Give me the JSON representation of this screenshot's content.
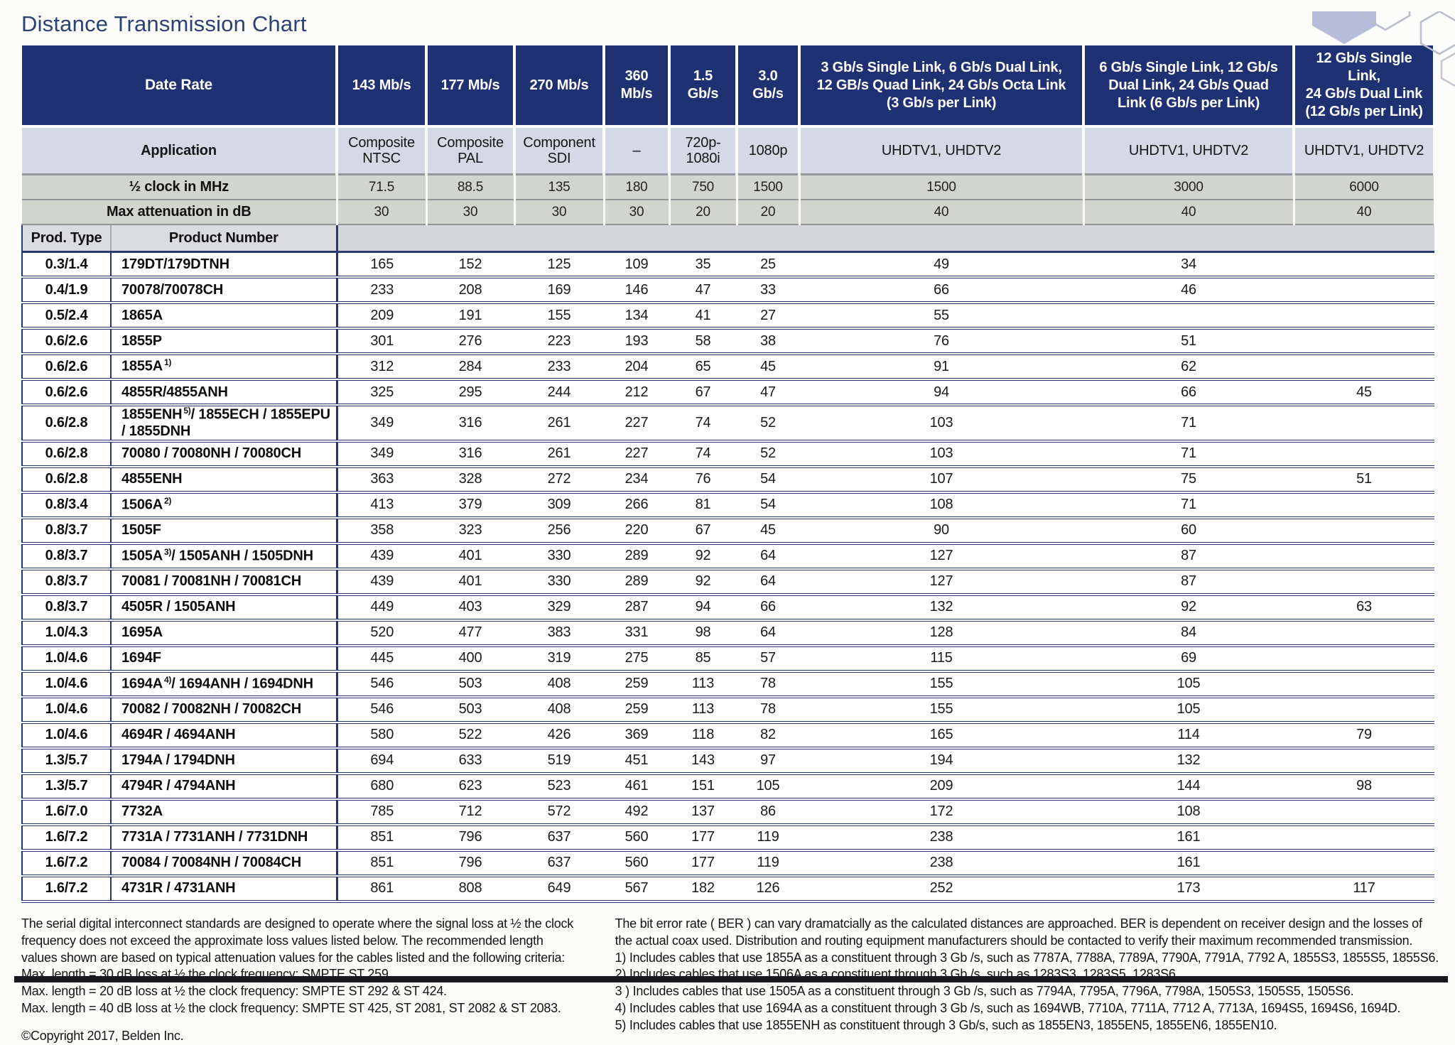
{
  "title": "Distance Transmission Chart",
  "table": {
    "header": {
      "date_rate_label": "Date Rate",
      "rate_cols": [
        "143 Mb/s",
        "177 Mb/s",
        "270 Mb/s",
        "360\nMb/s",
        "1.5\nGb/s",
        "3.0\nGb/s",
        "3 Gb/s Single Link, 6 Gb/s Dual Link,\n12 GB/s Quad Link, 24 Gb/s Octa Link\n(3 Gb/s per Link)",
        "6 Gb/s Single Link, 12 Gb/s\nDual Link, 24 Gb/s Quad\nLink (6 Gb/s per Link)",
        "12 Gb/s Single Link,\n24 Gb/s Dual Link\n(12 Gb/s per Link)"
      ],
      "application_label": "Application",
      "app_cols": [
        "Composite\nNTSC",
        "Composite\nPAL",
        "Component\nSDI",
        "–",
        "720p-\n1080i",
        "1080p",
        "UHDTV1, UHDTV2",
        "UHDTV1, UHDTV2",
        "UHDTV1, UHDTV2"
      ],
      "clock_label": "½ clock in MHz",
      "clock_cols": [
        "71.5",
        "88.5",
        "135",
        "180",
        "750",
        "1500",
        "1500",
        "3000",
        "6000"
      ],
      "atten_label": "Max attenuation in dB",
      "atten_cols": [
        "30",
        "30",
        "30",
        "30",
        "20",
        "20",
        "40",
        "40",
        "40"
      ],
      "prod_type_label": "Prod. Type",
      "product_number_label": "Product Number"
    },
    "rows": [
      {
        "type": "0.3/1.4",
        "name": "179DT/179DTNH",
        "note": "",
        "rest": "",
        "values": [
          "165",
          "152",
          "125",
          "109",
          "35",
          "25",
          "49",
          "34",
          ""
        ]
      },
      {
        "type": "0.4/1.9",
        "name": "70078/70078CH",
        "note": "",
        "rest": "",
        "values": [
          "233",
          "208",
          "169",
          "146",
          "47",
          "33",
          "66",
          "46",
          ""
        ]
      },
      {
        "type": "0.5/2.4",
        "name": "1865A",
        "note": "",
        "rest": "",
        "values": [
          "209",
          "191",
          "155",
          "134",
          "41",
          "27",
          "55",
          "",
          ""
        ]
      },
      {
        "type": "0.6/2.6",
        "name": "1855P",
        "note": "",
        "rest": "",
        "values": [
          "301",
          "276",
          "223",
          "193",
          "58",
          "38",
          "76",
          "51",
          ""
        ]
      },
      {
        "type": "0.6/2.6",
        "name": "1855A",
        "note": "1)",
        "rest": "",
        "values": [
          "312",
          "284",
          "233",
          "204",
          "65",
          "45",
          "91",
          "62",
          ""
        ]
      },
      {
        "type": "0.6/2.6",
        "name": "4855R/4855ANH",
        "note": "",
        "rest": "",
        "values": [
          "325",
          "295",
          "244",
          "212",
          "67",
          "47",
          "94",
          "66",
          "45"
        ]
      },
      {
        "type": "0.6/2.8",
        "name": "1855ENH",
        "note": "5)",
        "rest": "/ 1855ECH / 1855EPU / 1855DNH",
        "values": [
          "349",
          "316",
          "261",
          "227",
          "74",
          "52",
          "103",
          "71",
          ""
        ]
      },
      {
        "type": "0.6/2.8",
        "name": "70080 / 70080NH / 70080CH",
        "note": "",
        "rest": "",
        "values": [
          "349",
          "316",
          "261",
          "227",
          "74",
          "52",
          "103",
          "71",
          ""
        ]
      },
      {
        "type": "0.6/2.8",
        "name": "4855ENH",
        "note": "",
        "rest": "",
        "values": [
          "363",
          "328",
          "272",
          "234",
          "76",
          "54",
          "107",
          "75",
          "51"
        ]
      },
      {
        "type": "0.8/3.4",
        "name": "1506A",
        "note": "2)",
        "rest": "",
        "values": [
          "413",
          "379",
          "309",
          "266",
          "81",
          "54",
          "108",
          "71",
          ""
        ]
      },
      {
        "type": "0.8/3.7",
        "name": "1505F",
        "note": "",
        "rest": "",
        "values": [
          "358",
          "323",
          "256",
          "220",
          "67",
          "45",
          "90",
          "60",
          ""
        ]
      },
      {
        "type": "0.8/3.7",
        "name": "1505A",
        "note": "3)",
        "rest": "/ 1505ANH / 1505DNH",
        "values": [
          "439",
          "401",
          "330",
          "289",
          "92",
          "64",
          "127",
          "87",
          ""
        ]
      },
      {
        "type": "0.8/3.7",
        "name": "70081 / 70081NH / 70081CH",
        "note": "",
        "rest": "",
        "values": [
          "439",
          "401",
          "330",
          "289",
          "92",
          "64",
          "127",
          "87",
          ""
        ]
      },
      {
        "type": "0.8/3.7",
        "name": "4505R / 1505ANH",
        "note": "",
        "rest": "",
        "values": [
          "449",
          "403",
          "329",
          "287",
          "94",
          "66",
          "132",
          "92",
          "63"
        ]
      },
      {
        "type": "1.0/4.3",
        "name": "1695A",
        "note": "",
        "rest": "",
        "values": [
          "520",
          "477",
          "383",
          "331",
          "98",
          "64",
          "128",
          "84",
          ""
        ]
      },
      {
        "type": "1.0/4.6",
        "name": "1694F",
        "note": "",
        "rest": "",
        "values": [
          "445",
          "400",
          "319",
          "275",
          "85",
          "57",
          "115",
          "69",
          ""
        ]
      },
      {
        "type": "1.0/4.6",
        "name": "1694A",
        "note": "4)",
        "rest": "/ 1694ANH / 1694DNH",
        "values": [
          "546",
          "503",
          "408",
          "259",
          "113",
          "78",
          "155",
          "105",
          ""
        ]
      },
      {
        "type": "1.0/4.6",
        "name": "70082 / 70082NH / 70082CH",
        "note": "",
        "rest": "",
        "values": [
          "546",
          "503",
          "408",
          "259",
          "113",
          "78",
          "155",
          "105",
          ""
        ]
      },
      {
        "type": "1.0/4.6",
        "name": "4694R / 4694ANH",
        "note": "",
        "rest": "",
        "values": [
          "580",
          "522",
          "426",
          "369",
          "118",
          "82",
          "165",
          "114",
          "79"
        ]
      },
      {
        "type": "1.3/5.7",
        "name": "1794A / 1794DNH",
        "note": "",
        "rest": "",
        "values": [
          "694",
          "633",
          "519",
          "451",
          "143",
          "97",
          "194",
          "132",
          ""
        ]
      },
      {
        "type": "1.3/5.7",
        "name": "4794R / 4794ANH",
        "note": "",
        "rest": "",
        "values": [
          "680",
          "623",
          "523",
          "461",
          "151",
          "105",
          "209",
          "144",
          "98"
        ]
      },
      {
        "type": "1.6/7.0",
        "name": "7732A",
        "note": "",
        "rest": "",
        "values": [
          "785",
          "712",
          "572",
          "492",
          "137",
          "86",
          "172",
          "108",
          ""
        ]
      },
      {
        "type": "1.6/7.2",
        "name": "7731A / 7731ANH / 7731DNH",
        "note": "",
        "rest": "",
        "values": [
          "851",
          "796",
          "637",
          "560",
          "177",
          "119",
          "238",
          "161",
          ""
        ]
      },
      {
        "type": "1.6/7.2",
        "name": "70084 / 70084NH / 70084CH",
        "note": "",
        "rest": "",
        "values": [
          "851",
          "796",
          "637",
          "560",
          "177",
          "119",
          "238",
          "161",
          ""
        ]
      },
      {
        "type": "1.6/7.2",
        "name": "4731R / 4731ANH",
        "note": "",
        "rest": "",
        "values": [
          "861",
          "808",
          "649",
          "567",
          "182",
          "126",
          "252",
          "173",
          "117"
        ]
      }
    ]
  },
  "footer": {
    "left": {
      "paragraph": "The serial digital interconnect standards are designed to operate where the signal loss at ½ the clock\nfrequency does not exceed the approximate loss values listed below. The recommended length\nvalues shown are based on typical attenuation values for the cables listed and the following criteria:",
      "criteria": [
        "Max. length = 30 dB loss at ½ the clock frequency: SMPTE ST 259.",
        "Max. length = 20 dB loss at ½ the clock frequency: SMPTE ST 292 & ST 424.",
        "Max. length = 40 dB loss at ½ the clock frequency: SMPTE ST 425, ST 2081, ST 2082 & ST 2083."
      ],
      "copyright": "©Copyright 2017, Belden Inc."
    },
    "right": {
      "paragraph": "The bit error rate ( BER ) can vary dramatcially as the calculated distances are approached. BER is dependent on receiver design and the losses of\nthe actual coax used. Distribution and routing equipment manufacturers should be contacted to verify their maximum recommended transmission.",
      "notes": [
        "1) Includes cables that use 1855A as a constituent through 3 Gb /s, such as 7787A, 7788A, 7789A, 7790A, 7791A, 7792 A, 1855S3, 1855S5, 1855S6.",
        "2) Includes cables that use 1506A as a constituent through 3 Gb /s, such as 1283S3, 1283S5, 1283S6.",
        "3 ) Includes cables that use 1505A as a constituent through 3 Gb /s, such as 7794A, 7795A, 7796A, 7798A, 1505S3, 1505S5, 1505S6.",
        "4) Includes cables that use 1694A as a constituent through 3 Gb /s, such as 1694WB, 7710A, 7711A, 7712 A, 7713A, 1694S5, 1694S6, 1694D.",
        "5) Includes cables that use 1855ENH as constituent through 3 Gb/s, such as 1855EN3, 1855EN5, 1855EN6, 1855EN10."
      ]
    }
  },
  "colors": {
    "header_navy": "#1f3173",
    "application_row": "#d5d8e5",
    "grey_row": "#d2d4d0",
    "row_separator": "#27356e",
    "title_text": "#2c4274",
    "bottom_bar": "#17171d",
    "hexagon_fill": "#b6bcd9",
    "hexagon_outline": "#b9bdc9"
  }
}
